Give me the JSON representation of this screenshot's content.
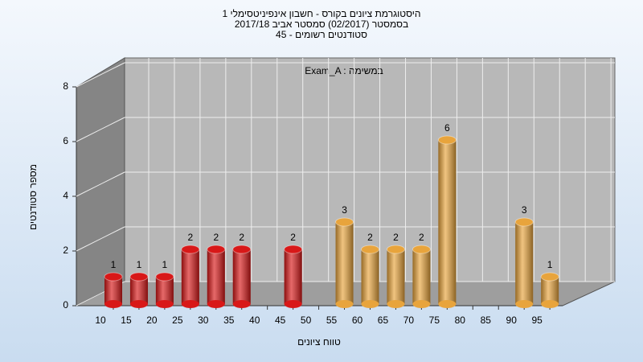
{
  "chart_data": {
    "type": "bar",
    "title": "היסטוגרמת ציונים בקורס - חשבון אינפיניטסימלי 1",
    "subtitle": "בסמסטר  (02/2017)  סמסטר אביב 2017/18",
    "subtitle2": "סטודנטים רשומים - 45",
    "annotation": "Exam_A : במשימה",
    "x_label": "טווח ציונים",
    "y_label": "מספר סטודנטים",
    "categories": [
      "10",
      "15",
      "20",
      "25",
      "30",
      "35",
      "40",
      "45",
      "50",
      "55",
      "60",
      "65",
      "70",
      "75",
      "80",
      "85",
      "90",
      "95"
    ],
    "values": [
      1,
      1,
      1,
      2,
      2,
      2,
      null,
      2,
      null,
      3,
      2,
      2,
      2,
      6,
      null,
      null,
      3,
      1
    ],
    "colors": [
      "#d81818",
      "#d81818",
      "#d81818",
      "#d81818",
      "#d81818",
      "#d81818",
      null,
      "#d81818",
      null,
      "#e8a43c",
      "#e8a43c",
      "#e8a43c",
      "#e8a43c",
      "#e8a43c",
      null,
      null,
      "#e8a43c",
      "#e8a43c"
    ],
    "ylim": [
      0,
      8
    ],
    "yticks": [
      0,
      2,
      4,
      6,
      8
    ],
    "grid": true
  }
}
